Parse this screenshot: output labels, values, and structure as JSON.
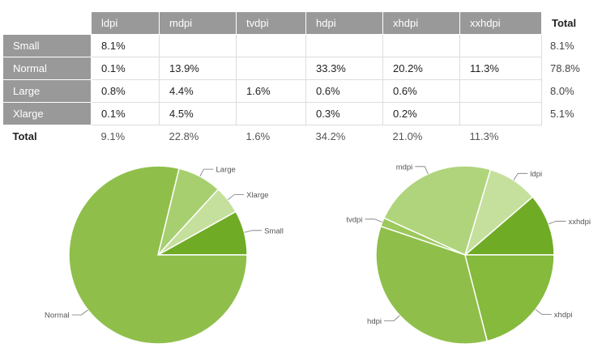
{
  "table": {
    "columns": [
      "ldpi",
      "mdpi",
      "tvdpi",
      "hdpi",
      "xhdpi",
      "xxhdpi"
    ],
    "total_header": "Total",
    "rows": [
      {
        "label": "Small",
        "cells": [
          "8.1%",
          "",
          "",
          "",
          "",
          ""
        ],
        "total": "8.1%"
      },
      {
        "label": "Normal",
        "cells": [
          "0.1%",
          "13.9%",
          "",
          "33.3%",
          "20.2%",
          "11.3%"
        ],
        "total": "78.8%"
      },
      {
        "label": "Large",
        "cells": [
          "0.8%",
          "4.4%",
          "1.6%",
          "0.6%",
          "0.6%",
          ""
        ],
        "total": "8.0%"
      },
      {
        "label": "Xlarge",
        "cells": [
          "0.1%",
          "4.5%",
          "",
          "0.3%",
          "0.2%",
          ""
        ],
        "total": "5.1%"
      }
    ],
    "footer": {
      "label": "Total",
      "values": [
        "9.1%",
        "22.8%",
        "1.6%",
        "34.2%",
        "21.0%",
        "11.3%"
      ]
    }
  },
  "chart_data": [
    {
      "type": "pie",
      "slices": [
        {
          "label": "Small",
          "value": 8.1,
          "color": "#6fab24"
        },
        {
          "label": "Xlarge",
          "value": 5.1,
          "color": "#c5e09c"
        },
        {
          "label": "Large",
          "value": 8.0,
          "color": "#a7cf70"
        },
        {
          "label": "Normal",
          "value": 78.8,
          "color": "#8fbf4a"
        }
      ]
    },
    {
      "type": "pie",
      "slices": [
        {
          "label": "xxhdpi",
          "value": 11.3,
          "color": "#6fab24"
        },
        {
          "label": "ldpi",
          "value": 9.1,
          "color": "#c5e09c"
        },
        {
          "label": "mdpi",
          "value": 22.8,
          "color": "#b0d47c"
        },
        {
          "label": "tvdpi",
          "value": 1.6,
          "color": "#9cc85c"
        },
        {
          "label": "hdpi",
          "value": 34.2,
          "color": "#8fbf4a"
        },
        {
          "label": "xhdpi",
          "value": 21.0,
          "color": "#85ba3d"
        }
      ]
    }
  ]
}
